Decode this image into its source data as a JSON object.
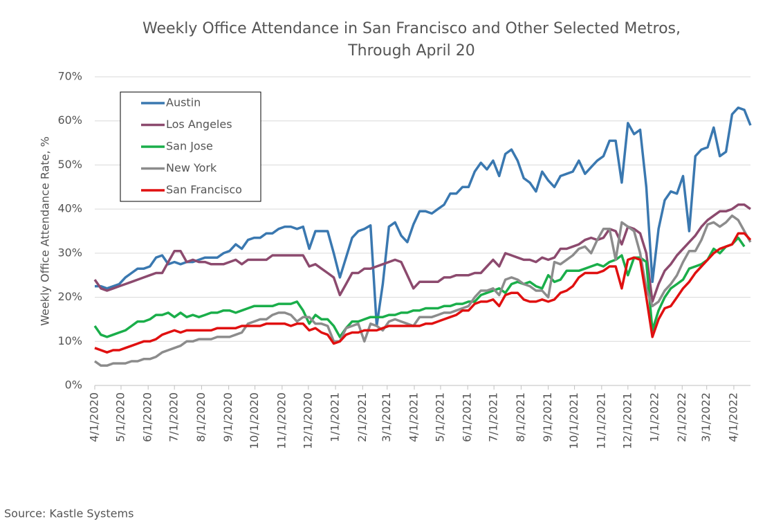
{
  "chart_data": {
    "type": "line",
    "title": [
      "Weekly Office Attendance in San Francisco and Other Selected Metros,",
      "Through April 20"
    ],
    "ylabel": "Weekly Office Attendance  Rate, %",
    "source": "Source: Kastle Systems",
    "grid": true,
    "legend": "upper left",
    "xlim": [
      "2020-04-01",
      "2022-04-20"
    ],
    "ylim": [
      0,
      70
    ],
    "yticks": [
      {
        "value": 0,
        "label": "0%"
      },
      {
        "value": 10,
        "label": "10%"
      },
      {
        "value": 20,
        "label": "20%"
      },
      {
        "value": 30,
        "label": "30%"
      },
      {
        "value": 40,
        "label": "40%"
      },
      {
        "value": 50,
        "label": "50%"
      },
      {
        "value": 60,
        "label": "60%"
      },
      {
        "value": 70,
        "label": "70%"
      }
    ],
    "xticks": [
      {
        "value": "2020-04-01",
        "label": "4/1/2020"
      },
      {
        "value": "2020-05-01",
        "label": "5/1/2020"
      },
      {
        "value": "2020-06-01",
        "label": "6/1/2020"
      },
      {
        "value": "2020-07-01",
        "label": "7/1/2020"
      },
      {
        "value": "2020-08-01",
        "label": "8/1/2020"
      },
      {
        "value": "2020-09-01",
        "label": "9/1/2020"
      },
      {
        "value": "2020-10-01",
        "label": "10/1/2020"
      },
      {
        "value": "2020-11-01",
        "label": "11/1/2020"
      },
      {
        "value": "2020-12-01",
        "label": "12/1/2020"
      },
      {
        "value": "2021-01-01",
        "label": "1/1/2021"
      },
      {
        "value": "2021-02-01",
        "label": "2/1/2021"
      },
      {
        "value": "2021-03-01",
        "label": "3/1/2021"
      },
      {
        "value": "2021-04-01",
        "label": "4/1/2021"
      },
      {
        "value": "2021-05-01",
        "label": "5/1/2021"
      },
      {
        "value": "2021-06-01",
        "label": "6/1/2021"
      },
      {
        "value": "2021-07-01",
        "label": "7/1/2021"
      },
      {
        "value": "2021-08-01",
        "label": "8/1/2021"
      },
      {
        "value": "2021-09-01",
        "label": "9/1/2021"
      },
      {
        "value": "2021-10-01",
        "label": "10/1/2021"
      },
      {
        "value": "2021-11-01",
        "label": "11/1/2021"
      },
      {
        "value": "2021-12-01",
        "label": "12/1/2021"
      },
      {
        "value": "2022-01-01",
        "label": "1/1/2022"
      },
      {
        "value": "2022-02-01",
        "label": "2/1/2022"
      },
      {
        "value": "2022-03-01",
        "label": "3/1/2022"
      },
      {
        "value": "2022-04-01",
        "label": "4/1/2022"
      }
    ],
    "x": [
      "2020-04-01",
      "2020-04-08",
      "2020-04-15",
      "2020-04-22",
      "2020-04-29",
      "2020-05-06",
      "2020-05-13",
      "2020-05-20",
      "2020-05-27",
      "2020-06-03",
      "2020-06-10",
      "2020-06-17",
      "2020-06-24",
      "2020-07-01",
      "2020-07-08",
      "2020-07-15",
      "2020-07-22",
      "2020-07-29",
      "2020-08-05",
      "2020-08-12",
      "2020-08-19",
      "2020-08-26",
      "2020-09-02",
      "2020-09-09",
      "2020-09-16",
      "2020-09-23",
      "2020-09-30",
      "2020-10-07",
      "2020-10-14",
      "2020-10-21",
      "2020-10-28",
      "2020-11-04",
      "2020-11-11",
      "2020-11-18",
      "2020-11-25",
      "2020-12-02",
      "2020-12-09",
      "2020-12-16",
      "2020-12-23",
      "2020-12-30",
      "2021-01-06",
      "2021-01-13",
      "2021-01-20",
      "2021-01-27",
      "2021-02-03",
      "2021-02-10",
      "2021-02-17",
      "2021-02-24",
      "2021-03-03",
      "2021-03-10",
      "2021-03-17",
      "2021-03-24",
      "2021-03-31",
      "2021-04-07",
      "2021-04-14",
      "2021-04-21",
      "2021-04-28",
      "2021-05-05",
      "2021-05-12",
      "2021-05-19",
      "2021-05-26",
      "2021-06-02",
      "2021-06-09",
      "2021-06-16",
      "2021-06-23",
      "2021-06-30",
      "2021-07-07",
      "2021-07-14",
      "2021-07-21",
      "2021-07-28",
      "2021-08-04",
      "2021-08-11",
      "2021-08-18",
      "2021-08-25",
      "2021-09-01",
      "2021-09-08",
      "2021-09-15",
      "2021-09-22",
      "2021-09-29",
      "2021-10-06",
      "2021-10-13",
      "2021-10-20",
      "2021-10-27",
      "2021-11-03",
      "2021-11-10",
      "2021-11-17",
      "2021-11-24",
      "2021-12-01",
      "2021-12-08",
      "2021-12-15",
      "2021-12-22",
      "2021-12-29",
      "2022-01-05",
      "2022-01-12",
      "2022-01-19",
      "2022-01-26",
      "2022-02-02",
      "2022-02-09",
      "2022-02-16",
      "2022-02-23",
      "2022-03-02",
      "2022-03-09",
      "2022-03-16",
      "2022-03-23",
      "2022-03-30",
      "2022-04-06",
      "2022-04-13",
      "2022-04-20"
    ],
    "series": [
      {
        "name": "Austin",
        "color": "#3a78b0",
        "values": [
          22.5,
          22.5,
          22,
          22.5,
          23,
          24.5,
          25.5,
          26.5,
          26.5,
          27,
          29,
          29.5,
          27.5,
          28,
          27.5,
          28,
          28,
          28.5,
          29,
          29,
          29,
          30,
          30.5,
          32,
          31,
          33,
          33.5,
          33.5,
          34.5,
          34.5,
          35.5,
          36,
          36,
          35.5,
          36,
          31,
          35,
          35,
          35,
          30,
          24.5,
          29,
          33.5,
          35,
          35.5,
          36.3,
          13.5,
          23,
          36,
          37,
          34,
          32.5,
          36.5,
          39.5,
          39.5,
          39,
          40,
          41,
          43.5,
          43.5,
          45,
          45,
          48.5,
          50.5,
          49,
          51,
          47.5,
          52.5,
          53.5,
          51,
          47,
          46,
          44,
          48.5,
          46.5,
          45,
          47.5,
          48,
          48.5,
          51,
          48,
          49.5,
          51,
          52,
          55.5,
          55.5,
          46,
          59.5,
          57,
          58,
          45,
          23.5,
          35.5,
          42,
          44,
          43.5,
          47.5,
          35,
          52,
          53.5,
          54,
          58.5,
          52,
          53,
          61.5,
          63,
          62.5,
          59
        ]
      },
      {
        "name": "Los Angeles",
        "color": "#8c4a6e",
        "values": [
          24,
          22,
          21.5,
          22,
          22.5,
          23,
          23.5,
          24,
          24.5,
          25,
          25.5,
          25.5,
          28,
          30.5,
          30.5,
          28,
          28.5,
          28,
          28,
          27.5,
          27.5,
          27.5,
          28,
          28.5,
          27.5,
          28.5,
          28.5,
          28.5,
          28.5,
          29.5,
          29.5,
          29.5,
          29.5,
          29.5,
          29.5,
          27,
          27.5,
          26.5,
          25.5,
          24.5,
          20.5,
          23,
          25.5,
          25.5,
          26.5,
          26.5,
          27,
          27.5,
          28,
          28.5,
          28,
          25,
          22,
          23.5,
          23.5,
          23.5,
          23.5,
          24.5,
          24.5,
          25,
          25,
          25,
          25.5,
          25.5,
          27,
          28.5,
          27,
          30,
          29.5,
          29,
          28.5,
          28.5,
          28,
          29,
          28.5,
          29,
          31,
          31,
          31.5,
          32,
          33,
          33.5,
          33,
          33.5,
          35.5,
          35,
          32,
          36,
          35.5,
          34.5,
          30,
          19,
          23,
          26,
          27.5,
          29.5,
          31,
          32.5,
          34,
          36,
          37.5,
          38.5,
          39.5,
          39.5,
          40,
          41,
          41,
          40
        ]
      },
      {
        "name": "San Jose",
        "color": "#1aae4a",
        "values": [
          13.5,
          11.5,
          11,
          11.5,
          12,
          12.5,
          13.5,
          14.5,
          14.5,
          15,
          16,
          16,
          16.5,
          15.5,
          16.5,
          15.5,
          16,
          15.5,
          16,
          16.5,
          16.5,
          17,
          17,
          16.5,
          17,
          17.5,
          18,
          18,
          18,
          18,
          18.5,
          18.5,
          18.5,
          19,
          17,
          14,
          16,
          15,
          15,
          13.5,
          11,
          13,
          14.5,
          14.5,
          15,
          15.5,
          15.5,
          15.5,
          16,
          16,
          16.5,
          16.5,
          17,
          17,
          17.5,
          17.5,
          17.5,
          18,
          18,
          18.5,
          18.5,
          19,
          19,
          20.5,
          21,
          21.5,
          22,
          21,
          23,
          23.5,
          23,
          23.5,
          22.5,
          22,
          25,
          23.5,
          24,
          26,
          26,
          26,
          26.5,
          27,
          27.5,
          27,
          28,
          28.5,
          29.5,
          25,
          29,
          29,
          28,
          12.5,
          17,
          20,
          22,
          23,
          24,
          26.5,
          27,
          27.5,
          28.5,
          31,
          30,
          31.5,
          32,
          33.5,
          31.5,
          null
        ]
      },
      {
        "name": "New York",
        "color": "#8c8c8c",
        "values": [
          5.5,
          4.5,
          4.5,
          5,
          5,
          5,
          5.5,
          5.5,
          6,
          6,
          6.5,
          7.5,
          8,
          8.5,
          9,
          10,
          10,
          10.5,
          10.5,
          10.5,
          11,
          11,
          11,
          11.5,
          12,
          14,
          14.5,
          15,
          15,
          16,
          16.5,
          16.5,
          16,
          14.5,
          15.5,
          15.5,
          14,
          14,
          13.5,
          10,
          10,
          13,
          13.5,
          14,
          10,
          14,
          13.5,
          12.5,
          14.5,
          15,
          14.5,
          14,
          13.5,
          15.5,
          15.5,
          15.5,
          16,
          16.5,
          16.5,
          17,
          17.5,
          18,
          20,
          21.5,
          21.5,
          22,
          20.5,
          24,
          24.5,
          24,
          23,
          22.5,
          21.5,
          21.5,
          20,
          28,
          27.5,
          28.5,
          29.5,
          31,
          31.5,
          30,
          33,
          35.5,
          35.5,
          28.5,
          37,
          36,
          35,
          30,
          22,
          18,
          19,
          21.5,
          23,
          25,
          28,
          30.5,
          30.5,
          33,
          36.5,
          37,
          36,
          37,
          38.5,
          37.5,
          35,
          32.5
        ]
      },
      {
        "name": "San Francisco",
        "color": "#e01010",
        "values": [
          8.5,
          8,
          7.5,
          8,
          8,
          8.5,
          9,
          9.5,
          10,
          10,
          10.5,
          11.5,
          12,
          12.5,
          12,
          12.5,
          12.5,
          12.5,
          12.5,
          12.5,
          13,
          13,
          13,
          13,
          13.5,
          13.5,
          13.5,
          13.5,
          14,
          14,
          14,
          14,
          13.5,
          14,
          14,
          12.5,
          13,
          12,
          11.5,
          9.5,
          10,
          11.5,
          12,
          12,
          12.5,
          12.5,
          12.5,
          13,
          13.5,
          13.5,
          13.5,
          13.5,
          13.5,
          13.5,
          14,
          14,
          14.5,
          15,
          15.5,
          16,
          17,
          17,
          18.5,
          19,
          19,
          19.5,
          18,
          20.5,
          21,
          21,
          19.5,
          19,
          19,
          19.5,
          19,
          19.5,
          21,
          21.5,
          22.5,
          24.5,
          25.5,
          25.5,
          25.5,
          26,
          27,
          27,
          22,
          28.5,
          29,
          28.5,
          20,
          11,
          15,
          17.5,
          18,
          20,
          22,
          23.5,
          25.5,
          27,
          28.5,
          30,
          31,
          31.5,
          32,
          34.5,
          34.5,
          33
        ]
      }
    ]
  }
}
